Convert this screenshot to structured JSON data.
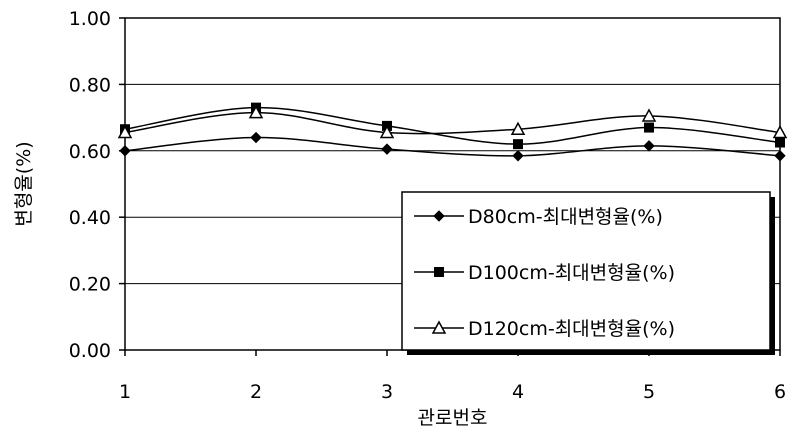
{
  "chart_data": {
    "type": "line",
    "title": "",
    "xlabel": "관로번호",
    "ylabel": "변형율(%)",
    "x": [
      1,
      2,
      3,
      4,
      5,
      6
    ],
    "x_tick_labels": [
      "1",
      "2",
      "3",
      "4",
      "5",
      "6"
    ],
    "y_tick_labels": [
      "0.00",
      "0.20",
      "0.40",
      "0.60",
      "0.80",
      "1.00"
    ],
    "ylim": [
      0,
      1
    ],
    "grid": true,
    "legend_position": "bottom-right",
    "series": [
      {
        "name": "D80cm-최대변형율(%)",
        "marker": "diamond",
        "values": [
          0.6,
          0.64,
          0.605,
          0.585,
          0.615,
          0.585
        ]
      },
      {
        "name": "D100cm-최대변형율(%)",
        "marker": "square",
        "values": [
          0.665,
          0.73,
          0.675,
          0.62,
          0.67,
          0.625
        ]
      },
      {
        "name": "D120cm-최대변형율(%)",
        "marker": "triangle",
        "values": [
          0.655,
          0.715,
          0.655,
          0.665,
          0.705,
          0.655
        ]
      }
    ]
  }
}
